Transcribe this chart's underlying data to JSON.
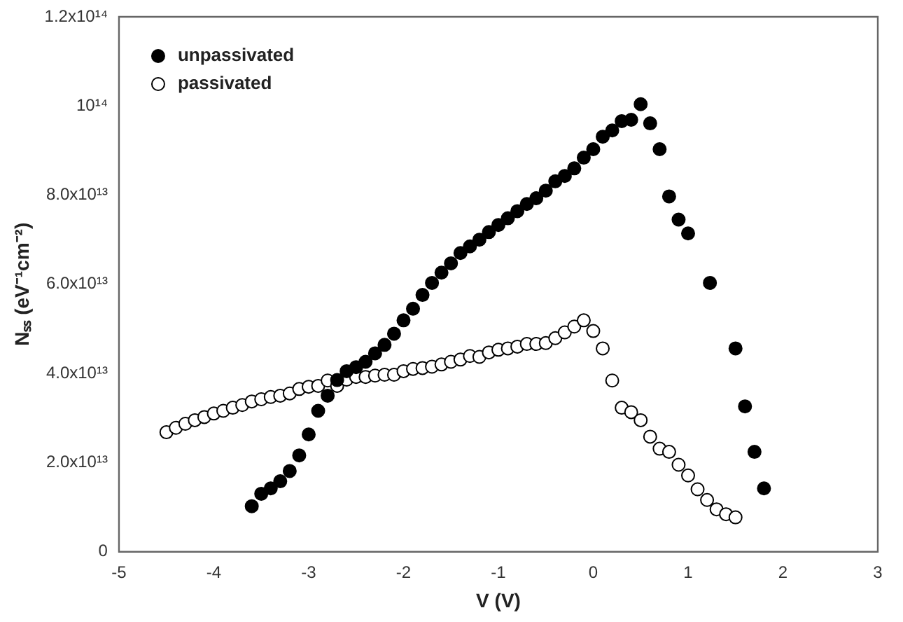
{
  "chart_data": {
    "type": "scatter",
    "xlabel": "V (V)",
    "ylabel": "Nₛₛ (eV⁻¹cm⁻²)",
    "xlim": [
      -5,
      3
    ],
    "xticks": [
      -5,
      -4,
      -3,
      -2,
      -1,
      0,
      1,
      2,
      3
    ],
    "ylim": [
      0,
      120000000000000.0
    ],
    "yticks": [
      0,
      {
        "value": 20000000000000.0,
        "label": "2.0x10¹³"
      },
      {
        "value": 40000000000000.0,
        "label": "4.0x10¹³"
      },
      {
        "value": 60000000000000.0,
        "label": "6.0x10¹³"
      },
      {
        "value": 80000000000000.0,
        "label": "8.0x10¹³"
      },
      {
        "value": 100000000000000.0,
        "label": "10¹⁴"
      },
      {
        "value": 120000000000000.0,
        "label": "1.2x10¹⁴"
      }
    ],
    "grid": false,
    "legend": "top left",
    "marker": "circle",
    "series": [
      {
        "name": "unpassivated",
        "color": "#000000",
        "x": [
          -3.6,
          -3.5,
          -3.4,
          -3.3,
          -3.2,
          -3.1,
          -3.0,
          -2.9,
          -2.8,
          -2.7,
          -2.6,
          -2.5,
          -2.4,
          -2.3,
          -2.2,
          -2.1,
          -2.0,
          -1.9,
          -1.8,
          -1.7,
          -1.6,
          -1.5,
          -1.4,
          -1.3,
          -1.2,
          -1.1,
          -1.0,
          -0.9,
          -0.8,
          -0.7,
          -0.6,
          -0.5,
          -0.4,
          -0.3,
          -0.2,
          -0.1,
          0.0,
          0.1,
          0.2,
          0.3,
          0.4,
          0.5,
          0.6,
          0.7,
          0.8,
          0.9,
          1.0,
          1.23,
          1.5,
          1.6,
          1.7,
          1.8
        ],
        "values": [
          10200000000000.0,
          13000000000000.0,
          14200000000000.0,
          15800000000000.0,
          18100000000000.0,
          21600000000000.0,
          26300000000000.0,
          31600000000000.0,
          35000000000000.0,
          38500000000000.0,
          40500000000000.0,
          41400000000000.0,
          42600000000000.0,
          44500000000000.0,
          46400000000000.0,
          48900000000000.0,
          51900000000000.0,
          54500000000000.0,
          57600000000000.0,
          60300000000000.0,
          62600000000000.0,
          64700000000000.0,
          67000000000000.0,
          68500000000000.0,
          70000000000000.0,
          71700000000000.0,
          73300000000000.0,
          74800000000000.0,
          76400000000000.0,
          78000000000000.0,
          79300000000000.0,
          81000000000000.0,
          83100000000000.0,
          84300000000000.0,
          86000000000000.0,
          88400000000000.0,
          90300000000000.0,
          93100000000000.0,
          94500000000000.0,
          96600000000000.0,
          96900000000000.0,
          100400000000000.0,
          96100000000000.0,
          90300000000000.0,
          79700000000000.0,
          74500000000000.0,
          71400000000000.0,
          60300000000000.0,
          45600000000000.0,
          32600000000000.0,
          22400000000000.0,
          14200000000000.0
        ]
      },
      {
        "name": "passivated",
        "color": "#ffffff",
        "x": [
          -4.5,
          -4.4,
          -4.3,
          -4.2,
          -4.1,
          -4.0,
          -3.9,
          -3.8,
          -3.7,
          -3.6,
          -3.5,
          -3.4,
          -3.3,
          -3.2,
          -3.1,
          -3.0,
          -2.9,
          -2.8,
          -2.7,
          -2.6,
          -2.5,
          -2.4,
          -2.3,
          -2.2,
          -2.1,
          -2.0,
          -1.9,
          -1.8,
          -1.7,
          -1.6,
          -1.5,
          -1.4,
          -1.3,
          -1.2,
          -1.1,
          -1.0,
          -0.9,
          -0.8,
          -0.7,
          -0.6,
          -0.5,
          -0.4,
          -0.3,
          -0.2,
          -0.1,
          0.0,
          0.1,
          0.2,
          0.3,
          0.4,
          0.5,
          0.6,
          0.7,
          0.8,
          0.9,
          1.0,
          1.1,
          1.2,
          1.3,
          1.4,
          1.5
        ],
        "values": [
          26800000000000.0,
          27800000000000.0,
          28700000000000.0,
          29500000000000.0,
          30200000000000.0,
          31000000000000.0,
          31600000000000.0,
          32300000000000.0,
          32900000000000.0,
          33700000000000.0,
          34200000000000.0,
          34700000000000.0,
          35000000000000.0,
          35500000000000.0,
          36500000000000.0,
          37000000000000.0,
          37200000000000.0,
          38400000000000.0,
          37200000000000.0,
          38600000000000.0,
          39200000000000.0,
          39200000000000.0,
          39500000000000.0,
          39700000000000.0,
          39700000000000.0,
          40500000000000.0,
          41000000000000.0,
          41200000000000.0,
          41500000000000.0,
          42000000000000.0,
          42600000000000.0,
          43100000000000.0,
          43900000000000.0,
          43700000000000.0,
          44700000000000.0,
          45300000000000.0,
          45600000000000.0,
          46000000000000.0,
          46600000000000.0,
          46600000000000.0,
          46800000000000.0,
          47900000000000.0,
          49200000000000.0,
          50500000000000.0,
          51900000000000.0,
          49500000000000.0,
          45600000000000.0,
          38400000000000.0,
          32300000000000.0,
          31300000000000.0,
          29500000000000.0,
          25800000000000.0,
          23100000000000.0,
          22400000000000.0,
          19500000000000.0,
          17100000000000.0,
          14000000000000.0,
          11600000000000.0,
          9500000000000.0,
          8400000000000.0,
          7700000000000.0
        ]
      }
    ]
  }
}
